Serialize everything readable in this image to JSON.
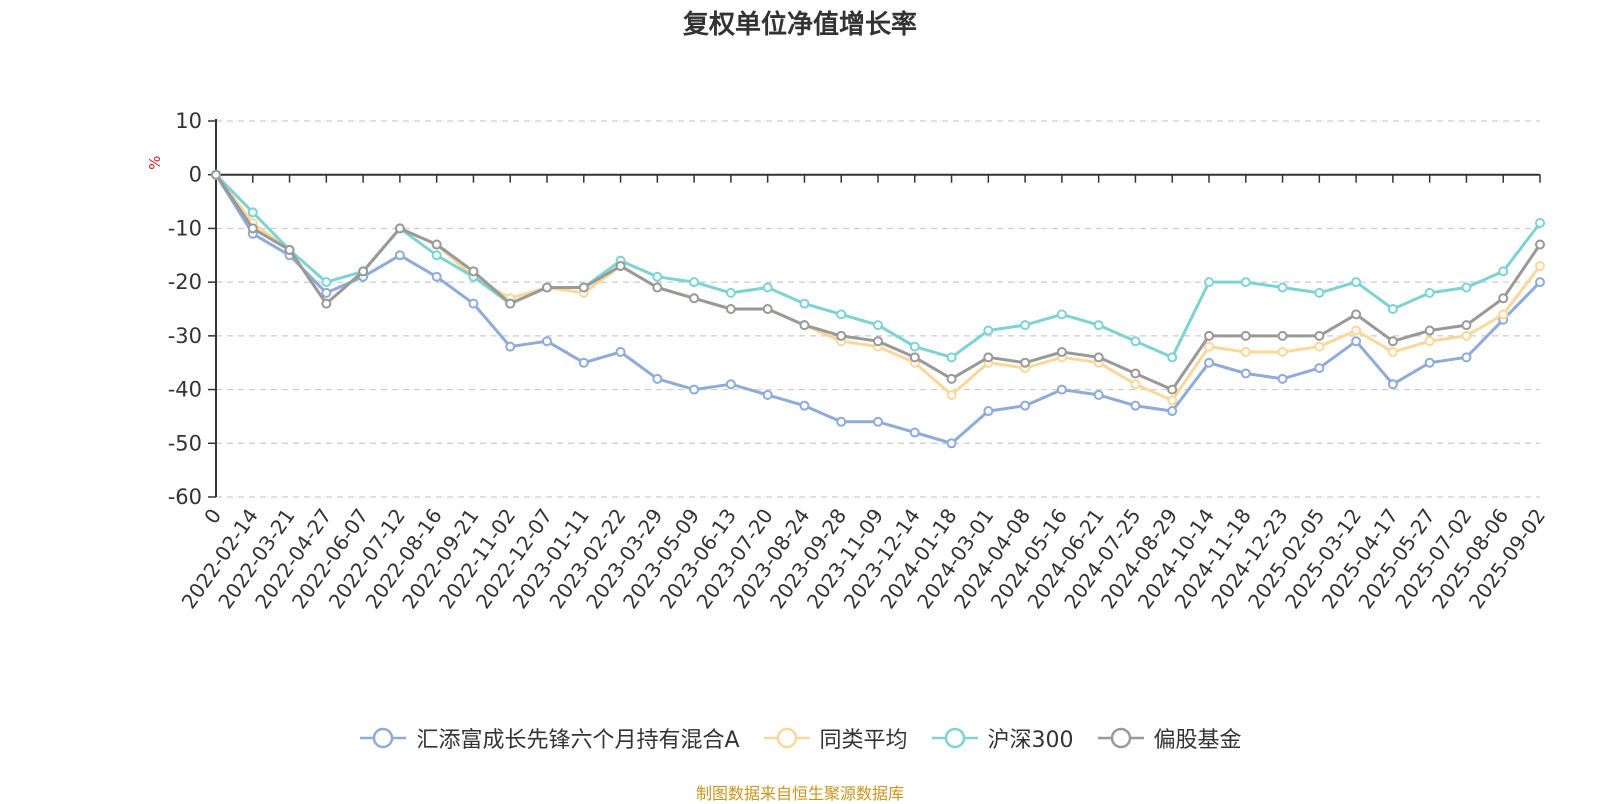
{
  "chart_data": {
    "type": "line",
    "title": "复权单位净值增长率",
    "ylabel": "%",
    "xlabel": "",
    "ylim": [
      -60,
      10
    ],
    "yticks": [
      10,
      0,
      -10,
      -20,
      -30,
      -40,
      -50,
      -60
    ],
    "grid": true,
    "legend_position": "bottom",
    "x_tick_labels": [
      "0",
      "2022-02-14",
      "2022-03-21",
      "2022-04-27",
      "2022-06-07",
      "2022-07-12",
      "2022-08-16",
      "2022-09-21",
      "2022-11-02",
      "2022-12-07",
      "2023-01-11",
      "2023-02-22",
      "2023-03-29",
      "2023-05-09",
      "2023-06-13",
      "2023-07-20",
      "2023-08-24",
      "2023-09-28",
      "2023-11-09",
      "2023-12-14",
      "2024-01-18",
      "2024-03-01",
      "2024-04-08",
      "2024-05-16",
      "2024-06-21",
      "2024-07-25",
      "2024-08-29",
      "2024-10-14",
      "2024-11-18",
      "2024-12-23",
      "2025-02-05",
      "2025-03-12",
      "2025-04-17",
      "2025-05-27",
      "2025-07-02",
      "2025-08-06",
      "2025-09-02"
    ],
    "series": [
      {
        "name": "汇添富成长先锋六个月持有混合A",
        "color": "#8eabd9",
        "values": [
          0,
          -11,
          -15,
          -22,
          -19,
          -15,
          -19,
          -24,
          -32,
          -31,
          -35,
          -33,
          -38,
          -40,
          -39,
          -41,
          -43,
          -46,
          -46,
          -48,
          -50,
          -44,
          -43,
          -40,
          -41,
          -43,
          -44,
          -35,
          -37,
          -38,
          -36,
          -31,
          -39,
          -35,
          -34,
          -27,
          -20
        ]
      },
      {
        "name": "同类平均",
        "color": "#fbd79a",
        "values": [
          0,
          -9,
          -14,
          -24,
          -18,
          -10,
          -13,
          -19,
          -23,
          -21,
          -22,
          -17,
          -21,
          -23,
          -25,
          -25,
          -28,
          -31,
          -32,
          -35,
          -41,
          -35,
          -36,
          -34,
          -35,
          -39,
          -42,
          -32,
          -33,
          -33,
          -32,
          -29,
          -33,
          -31,
          -30,
          -26,
          -17
        ]
      },
      {
        "name": "沪深300",
        "color": "#7dd3d3",
        "values": [
          0,
          -7,
          -14,
          -20,
          -18,
          -10,
          -15,
          -19,
          -24,
          -21,
          -21,
          -16,
          -19,
          -20,
          -22,
          -21,
          -24,
          -26,
          -28,
          -32,
          -34,
          -29,
          -28,
          -26,
          -28,
          -31,
          -34,
          -20,
          -20,
          -21,
          -22,
          -20,
          -25,
          -22,
          -21,
          -18,
          -9
        ]
      },
      {
        "name": "偏股基金",
        "color": "#999999",
        "values": [
          0,
          -10,
          -14,
          -24,
          -18,
          -10,
          -13,
          -18,
          -24,
          -21,
          -21,
          -17,
          -21,
          -23,
          -25,
          -25,
          -28,
          -30,
          -31,
          -34,
          -38,
          -34,
          -35,
          -33,
          -34,
          -37,
          -40,
          -30,
          -30,
          -30,
          -30,
          -26,
          -31,
          -29,
          -28,
          -23,
          -13
        ]
      }
    ]
  },
  "footer": {
    "source": "制图数据来自恒生聚源数据库"
  }
}
